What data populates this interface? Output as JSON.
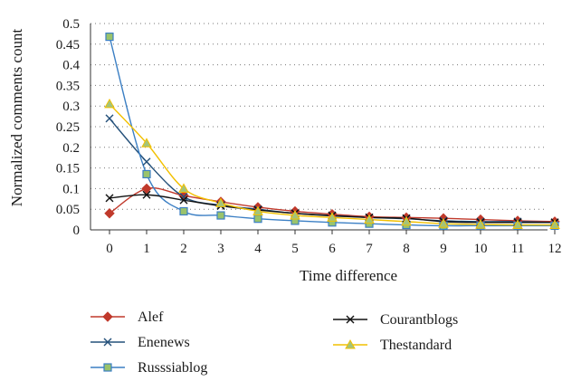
{
  "chart_data": {
    "type": "line",
    "title": "",
    "xlabel": "Time difference",
    "ylabel": "Normalized comments count",
    "x": [
      0,
      1,
      2,
      3,
      4,
      5,
      6,
      7,
      8,
      9,
      10,
      11,
      12
    ],
    "xlim": [
      0,
      12
    ],
    "ylim": [
      0,
      0.5
    ],
    "yticks": [
      "0",
      "0.05",
      "0.1",
      "0.15",
      "0.2",
      "0.25",
      "0.3",
      "0.35",
      "0.4",
      "0.45",
      "0.5"
    ],
    "xticks": [
      "0",
      "1",
      "2",
      "3",
      "4",
      "5",
      "6",
      "7",
      "8",
      "9",
      "10",
      "11",
      "12"
    ],
    "grid": "horizontal dotted",
    "smooth": true,
    "legend_position": "bottom",
    "series": [
      {
        "name": "Alef",
        "color": "#c0392b",
        "marker": "diamond",
        "values": [
          0.04,
          0.1,
          0.083,
          0.068,
          0.055,
          0.045,
          0.038,
          0.032,
          0.03,
          0.028,
          0.025,
          0.022,
          0.02
        ]
      },
      {
        "name": "Enenews",
        "color": "#24507a",
        "marker": "x",
        "values": [
          0.27,
          0.165,
          0.08,
          0.06,
          0.05,
          0.04,
          0.035,
          0.03,
          0.027,
          0.022,
          0.02,
          0.02,
          0.018
        ]
      },
      {
        "name": "Russsiablog",
        "color": "#3b7fc4",
        "marker": "square",
        "values": [
          0.468,
          0.135,
          0.045,
          0.035,
          0.027,
          0.022,
          0.018,
          0.015,
          0.012,
          0.01,
          0.01,
          0.01,
          0.01
        ]
      },
      {
        "name": "Courantblogs",
        "color": "#111111",
        "marker": "x",
        "values": [
          0.077,
          0.085,
          0.072,
          0.058,
          0.048,
          0.04,
          0.034,
          0.03,
          0.028,
          0.02,
          0.018,
          0.018,
          0.018
        ]
      },
      {
        "name": "Thestandard",
        "color": "#f2c000",
        "marker": "triangle",
        "values": [
          0.305,
          0.21,
          0.1,
          0.065,
          0.045,
          0.035,
          0.03,
          0.025,
          0.02,
          0.015,
          0.013,
          0.012,
          0.012
        ]
      }
    ]
  }
}
